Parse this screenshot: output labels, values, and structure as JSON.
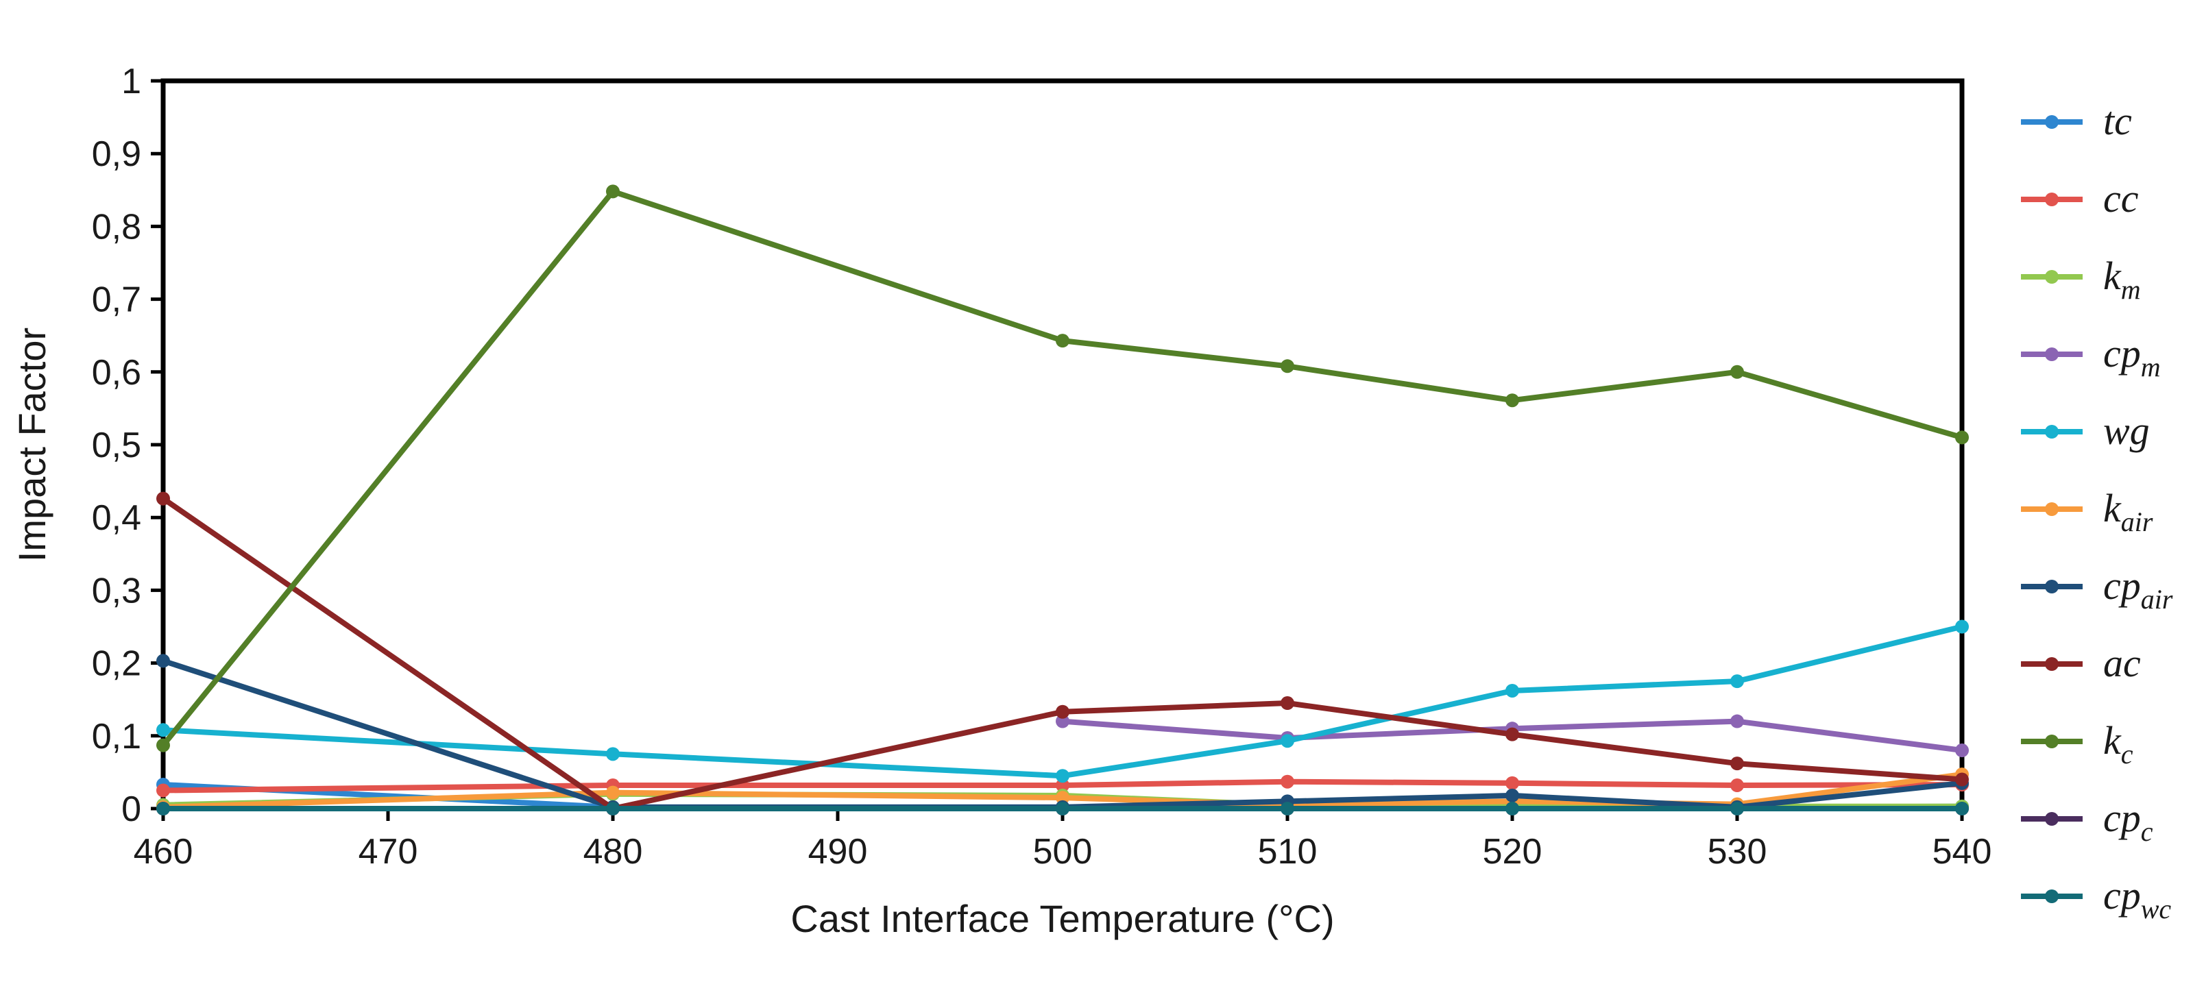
{
  "chart_data": {
    "type": "line",
    "title": "",
    "xlabel": "Cast Interface Temperature (°C)",
    "ylabel": "Impact Factor",
    "xlim": [
      460,
      540
    ],
    "ylim": [
      0,
      1
    ],
    "grid": false,
    "legend_position": "right",
    "x_ticks": [
      "460",
      "470",
      "480",
      "490",
      "500",
      "510",
      "520",
      "530",
      "540"
    ],
    "y_ticks": [
      "0",
      "0,1",
      "0,2",
      "0,3",
      "0,4",
      "0,5",
      "0,6",
      "0,7",
      "0,8",
      "0,9",
      "1"
    ],
    "x": [
      460,
      480,
      500,
      510,
      520,
      530,
      540
    ],
    "series": [
      {
        "name": "tc",
        "base": "tc",
        "sub": "",
        "color": "#2e86d0",
        "values": [
          0.033,
          0.002,
          0.002,
          0.002,
          0.002,
          0.002,
          0.003
        ]
      },
      {
        "name": "cc",
        "base": "cc",
        "sub": "",
        "color": "#e2534d",
        "values": [
          0.025,
          0.032,
          0.032,
          0.037,
          0.035,
          0.032,
          0.033
        ]
      },
      {
        "name": "km",
        "base": "k",
        "sub": "m",
        "color": "#92c84f",
        "values": [
          0.005,
          0.02,
          0.018,
          0.005,
          0.004,
          0.003,
          0.003
        ]
      },
      {
        "name": "cpm",
        "base": "cp",
        "sub": "m",
        "color": "#8b64b3",
        "values": [
          null,
          null,
          0.12,
          0.097,
          0.11,
          0.12,
          0.08
        ]
      },
      {
        "name": "wg",
        "base": "wg",
        "sub": "",
        "color": "#17b1cf",
        "values": [
          0.108,
          0.075,
          0.045,
          0.093,
          0.162,
          0.175,
          0.25
        ]
      },
      {
        "name": "kair",
        "base": "k",
        "sub": "air",
        "color": "#f79a3c",
        "values": [
          0.002,
          0.022,
          0.015,
          0.005,
          0.01,
          0.006,
          0.047
        ]
      },
      {
        "name": "cpair",
        "base": "cp",
        "sub": "air",
        "color": "#1f4e79",
        "values": [
          0.203,
          0.002,
          0.002,
          0.01,
          0.018,
          0.002,
          0.035
        ]
      },
      {
        "name": "ac",
        "base": "ac",
        "sub": "",
        "color": "#8b2525",
        "values": [
          0.426,
          0.0,
          0.133,
          0.145,
          0.102,
          0.062,
          0.04
        ]
      },
      {
        "name": "kc",
        "base": "k",
        "sub": "c",
        "color": "#537f27",
        "values": [
          0.087,
          0.848,
          0.643,
          0.608,
          0.561,
          0.6,
          0.51
        ]
      },
      {
        "name": "cpc",
        "base": "cp",
        "sub": "c",
        "color": "#4a2d5e",
        "values": [
          0.0,
          0.0,
          0.0,
          0.0,
          0.0,
          0.0,
          0.0
        ]
      },
      {
        "name": "cpwc",
        "base": "cp",
        "sub": "wc",
        "color": "#136b77",
        "values": [
          0.0,
          0.0,
          0.0,
          0.0,
          0.0,
          0.0,
          0.0
        ]
      }
    ]
  }
}
